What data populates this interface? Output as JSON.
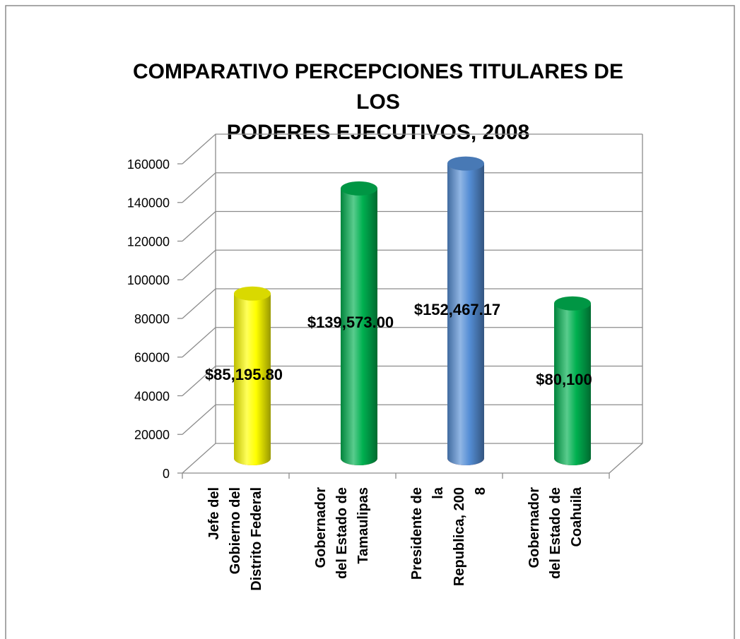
{
  "chart_data": {
    "type": "bar3d",
    "title": [
      "COMPARATIVO PERCEPCIONES TITULARES DE",
      "LOS",
      "PODERES EJECUTIVOS, 2008"
    ],
    "categories": [
      [
        "Jefe del",
        "Gobierno del",
        "Distrito Federal"
      ],
      [
        "Gobernador",
        "del Estado de",
        "Tamaulipas"
      ],
      [
        "Presidente de",
        "la",
        "Republica, 200",
        "8"
      ],
      [
        "Gobernador",
        "del Estado de",
        "Coahuila"
      ]
    ],
    "values": [
      85195.8,
      139573,
      152467.17,
      80100
    ],
    "value_labels": [
      "$85,195.80",
      "$139,573.00",
      "$152,467.17",
      "$80,100"
    ],
    "colors": [
      "#ffff00",
      "#00b050",
      "#558ed5",
      "#00b050"
    ],
    "ylim": [
      0,
      160000
    ],
    "yticks": [
      0,
      20000,
      40000,
      60000,
      80000,
      100000,
      120000,
      140000,
      160000
    ],
    "grid": true
  }
}
